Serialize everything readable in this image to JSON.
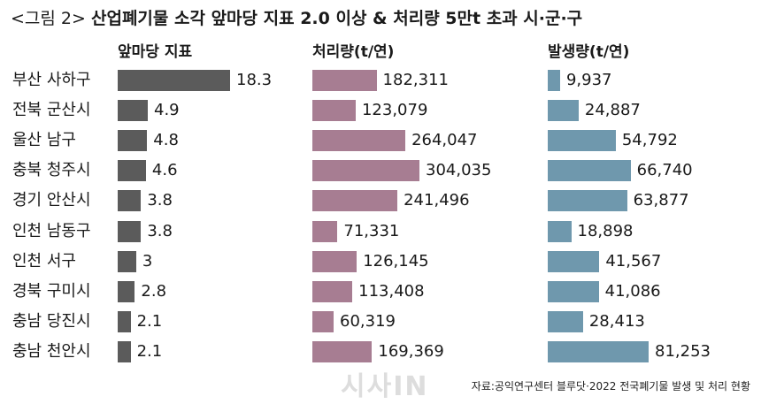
{
  "title_prefix": "<그림 2>",
  "title_main": "산업폐기물 소각 앞마당 지표 2.0 이상 & 처리량 5만t 초과 시·군·구",
  "footer": "자료:공익연구센터 블루닷·2022 전국폐기물 발생 및 처리 현황",
  "watermark": "시사IN",
  "chart_data": {
    "type": "bar",
    "orientation": "horizontal",
    "categories": [
      "부산 사하구",
      "전북 군산시",
      "울산 남구",
      "충북 청주시",
      "경기 안산시",
      "인천 남동구",
      "인천 서구",
      "경북 구미시",
      "충남 당진시",
      "충남 천안시"
    ],
    "series": [
      {
        "name": "앞마당 지표",
        "color": "#5b5b5b",
        "values": [
          18.3,
          4.9,
          4.8,
          4.6,
          3.8,
          3.8,
          3,
          2.8,
          2.1,
          2.1
        ],
        "labels": [
          "18.3",
          "4.9",
          "4.8",
          "4.6",
          "3.8",
          "3.8",
          "3",
          "2.8",
          "2.1",
          "2.1"
        ]
      },
      {
        "name": "처리량(t/연)",
        "color": "#a77d92",
        "values": [
          182311,
          123079,
          264047,
          304035,
          241496,
          71331,
          126145,
          113408,
          60319,
          169369
        ],
        "labels": [
          "182,311",
          "123,079",
          "264,047",
          "304,035",
          "241,496",
          "71,331",
          "126,145",
          "113,408",
          "60,319",
          "169,369"
        ]
      },
      {
        "name": "발생량(t/연)",
        "color": "#6f98ad",
        "values": [
          9937,
          24887,
          54792,
          66740,
          63877,
          18898,
          41567,
          41086,
          28413,
          81253
        ],
        "labels": [
          "9,937",
          "24,887",
          "54,792",
          "66,740",
          "63,877",
          "18,898",
          "41,567",
          "41,086",
          "28,413",
          "81,253"
        ]
      }
    ]
  }
}
